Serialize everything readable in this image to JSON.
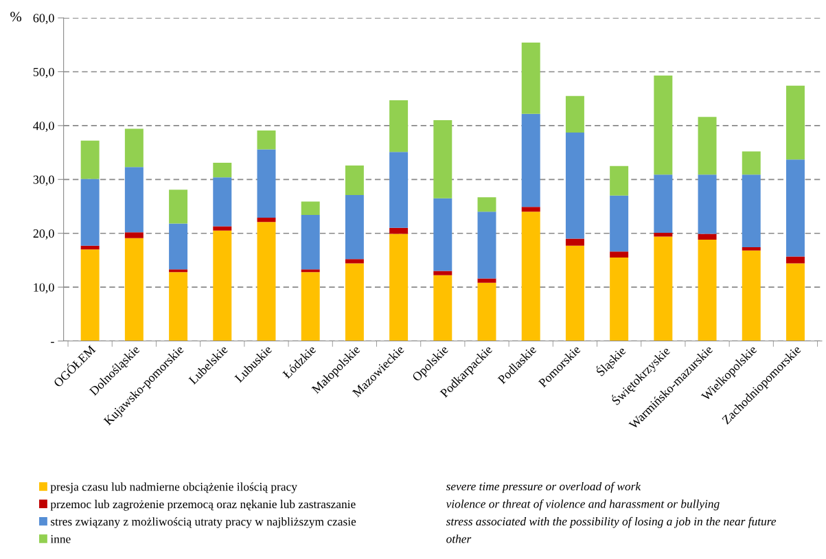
{
  "chart_data": {
    "type": "bar",
    "stacked": true,
    "ylabel": "%",
    "categories": [
      "OGÓŁEM",
      "Dolnośląskie",
      "Kujawsko-pomorskie",
      "Lubelskie",
      "Lubuskie",
      "Łódzkie",
      "Małopolskie",
      "Mazowieckie",
      "Opolskie",
      "Podkarpackie",
      "Podlaskie",
      "Pomorskie",
      "Śląskie",
      "Świętokrzyskie",
      "Warmińsko-mazurskie",
      "Wielkopolskie",
      "Zachodniopomorskie"
    ],
    "series": [
      {
        "name": "presja czasu lub nadmierne obciążenie ilością pracy",
        "color": "#ffc000",
        "values": [
          17.0,
          19.1,
          12.8,
          20.5,
          22.1,
          12.8,
          14.4,
          19.9,
          12.2,
          10.8,
          24.0,
          17.7,
          15.5,
          19.4,
          18.8,
          16.8,
          14.4
        ]
      },
      {
        "name": "przemoc lub zagrożenie przemocą oraz nękanie lub zastraszanie",
        "color": "#c00000",
        "values": [
          0.7,
          1.1,
          0.5,
          0.8,
          0.8,
          0.5,
          0.8,
          1.1,
          0.8,
          0.8,
          0.9,
          1.3,
          1.1,
          0.7,
          1.1,
          0.6,
          1.3
        ]
      },
      {
        "name": "stres związany z możliwością utraty pracy w najbliższym czasie",
        "color": "#558ed5",
        "values": [
          12.4,
          12.1,
          8.5,
          9.1,
          12.7,
          10.1,
          11.9,
          14.1,
          13.5,
          12.4,
          17.3,
          19.7,
          10.4,
          10.8,
          11.0,
          13.5,
          18.0
        ]
      },
      {
        "name": "inne",
        "color": "#92d050",
        "values": [
          7.1,
          7.1,
          6.3,
          2.7,
          3.5,
          2.5,
          5.5,
          9.6,
          14.5,
          2.7,
          13.2,
          6.8,
          5.5,
          18.4,
          10.7,
          4.3,
          13.7
        ]
      }
    ],
    "ylim": [
      0,
      60
    ],
    "yticks": [
      {
        "value": 0,
        "label": "-"
      },
      {
        "value": 10,
        "label": "10,0"
      },
      {
        "value": 20,
        "label": "20,0"
      },
      {
        "value": 30,
        "label": "30,0"
      },
      {
        "value": 40,
        "label": "40,0"
      },
      {
        "value": 50,
        "label": "50,0"
      },
      {
        "value": 60,
        "label": "60,0"
      }
    ],
    "grid": "y",
    "legend": "bottom left",
    "annotations": [
      "severe time pressure or overload of work",
      "violence or threat of violence and harassment or bullying",
      "stress associated with the possibility of losing a job in the near future",
      "other"
    ]
  }
}
